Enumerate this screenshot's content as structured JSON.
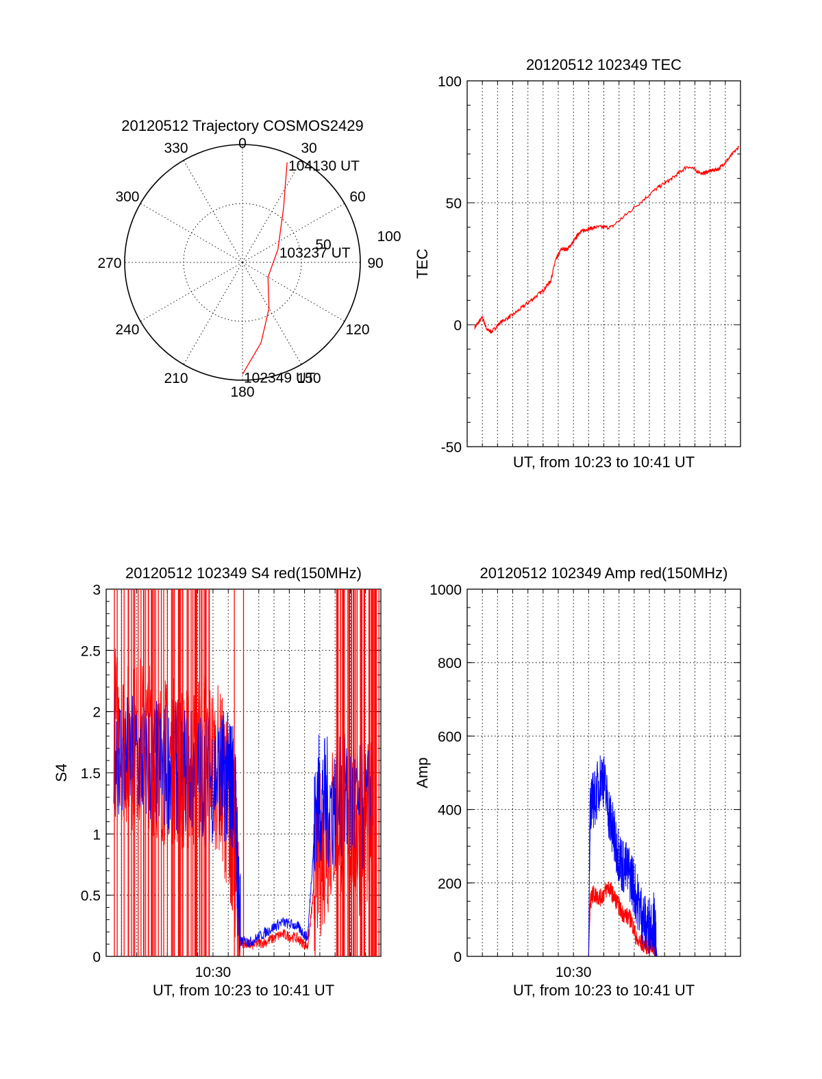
{
  "chart_data": [
    {
      "type": "polar",
      "title": "20120512 Trajectory COSMOS2429",
      "angle_labels": [
        "0",
        "30",
        "60",
        "90",
        "120",
        "150",
        "180",
        "210",
        "240",
        "270",
        "300",
        "330"
      ],
      "radial_labels": [
        "50",
        "100"
      ],
      "grid": true,
      "series": [
        {
          "color": "#ff0000",
          "points": [
            {
              "azimuth": 180,
              "zenith": 95,
              "time_label": "102349 UT"
            },
            {
              "azimuth": 167,
              "zenith": 70
            },
            {
              "azimuth": 150,
              "zenith": 45
            },
            {
              "azimuth": 120,
              "zenith": 25
            },
            {
              "azimuth": 70,
              "zenith": 32,
              "time_label": "103237 UT"
            },
            {
              "azimuth": 37,
              "zenith": 58
            },
            {
              "azimuth": 24,
              "zenith": 93,
              "time_label": "104130 UT"
            }
          ]
        }
      ]
    },
    {
      "type": "line",
      "title": "20120512 102349 TEC",
      "xlabel": "UT, from 10:23 to 10:41 UT",
      "ylabel": "TEC",
      "xlim": [
        0,
        18
      ],
      "ylim": [
        -50,
        100
      ],
      "yticks": [
        "100",
        "50",
        "0",
        "-50"
      ],
      "grid": true,
      "series": [
        {
          "color": "#ff0000",
          "x": [
            0.5,
            1.0,
            1.3,
            1.6,
            2.2,
            3.0,
            4.0,
            5.0,
            5.5,
            5.8,
            6.2,
            6.6,
            7.0,
            7.4,
            7.8,
            8.5,
            9.5,
            11.0,
            12.5,
            13.5,
            14.5,
            15.5,
            16.0,
            16.6,
            17.2,
            17.9
          ],
          "y": [
            -1,
            3,
            -2,
            -3,
            1,
            4,
            9,
            14,
            18,
            26,
            31,
            31,
            34,
            38,
            39,
            40,
            40,
            48,
            56,
            60,
            65,
            62,
            63,
            64,
            68,
            73
          ]
        }
      ]
    },
    {
      "type": "line",
      "title": "20120512 102349 S4 red(150MHz)",
      "xlabel": "UT, from 10:23 to 10:41 UT",
      "ylabel": "S4",
      "xlim": [
        0,
        18
      ],
      "ylim": [
        0,
        3
      ],
      "xticks": [
        "10:30"
      ],
      "yticks": [
        "3",
        "2.5",
        "2",
        "1.5",
        "1",
        "0.5",
        "0"
      ],
      "grid": true,
      "series": [
        {
          "color": "#ff0000",
          "x": [
            0.5,
            1.5,
            2.5,
            3.5,
            4.5,
            5.5,
            6.5,
            7.5,
            8.0,
            8.4,
            8.8,
            9.5,
            10.5,
            11.5,
            12.5,
            13.2,
            13.8,
            14.5,
            15.5,
            16.5,
            17.5
          ],
          "y": [
            1.9,
            1.7,
            1.8,
            1.6,
            1.6,
            1.5,
            1.7,
            1.5,
            1.2,
            0.9,
            0.12,
            0.09,
            0.12,
            0.18,
            0.15,
            0.08,
            0.75,
            1.0,
            1.2,
            1.0,
            1.1
          ]
        },
        {
          "color": "#0000ff",
          "x": [
            0.5,
            1.5,
            2.5,
            3.5,
            4.5,
            5.5,
            6.5,
            7.5,
            8.0,
            8.4,
            8.8,
            9.5,
            10.5,
            11.5,
            12.5,
            13.2,
            13.8,
            14.5,
            15.5,
            16.5,
            17.5
          ],
          "y": [
            1.7,
            1.6,
            1.6,
            1.55,
            1.55,
            1.5,
            1.45,
            1.5,
            1.45,
            1.4,
            0.12,
            0.12,
            0.2,
            0.28,
            0.25,
            0.15,
            1.3,
            1.25,
            1.25,
            1.2,
            1.2
          ]
        }
      ]
    },
    {
      "type": "line",
      "title": "20120512 102349 Amp red(150MHz)",
      "xlabel": "UT, from 10:23 to 10:41 UT",
      "ylabel": "Amp",
      "xlim": [
        0,
        18
      ],
      "ylim": [
        0,
        1000
      ],
      "xticks": [
        "10:30"
      ],
      "yticks": [
        "1000",
        "800",
        "600",
        "400",
        "200",
        "0"
      ],
      "grid": true,
      "series": [
        {
          "color": "#ff0000",
          "x": [
            0.5,
            2,
            4,
            6,
            8.0,
            8.1,
            8.3,
            8.8,
            9.3,
            9.7,
            10.2,
            10.8,
            11.2,
            11.8,
            12.3,
            12.5,
            13,
            15,
            17.9
          ],
          "y": [
            0,
            0,
            0,
            0,
            0,
            150,
            170,
            160,
            190,
            160,
            120,
            100,
            40,
            30,
            25,
            0,
            0,
            0,
            0
          ]
        },
        {
          "color": "#0000ff",
          "x": [
            0.5,
            2,
            4,
            6,
            8.0,
            8.1,
            8.4,
            8.9,
            9.4,
            9.7,
            10.2,
            10.8,
            11.3,
            11.8,
            12.3,
            12.5,
            13,
            15,
            17.9
          ],
          "y": [
            0,
            0,
            0,
            0,
            0,
            420,
            430,
            500,
            380,
            320,
            250,
            220,
            140,
            80,
            100,
            0,
            0,
            0,
            0
          ]
        }
      ]
    }
  ]
}
